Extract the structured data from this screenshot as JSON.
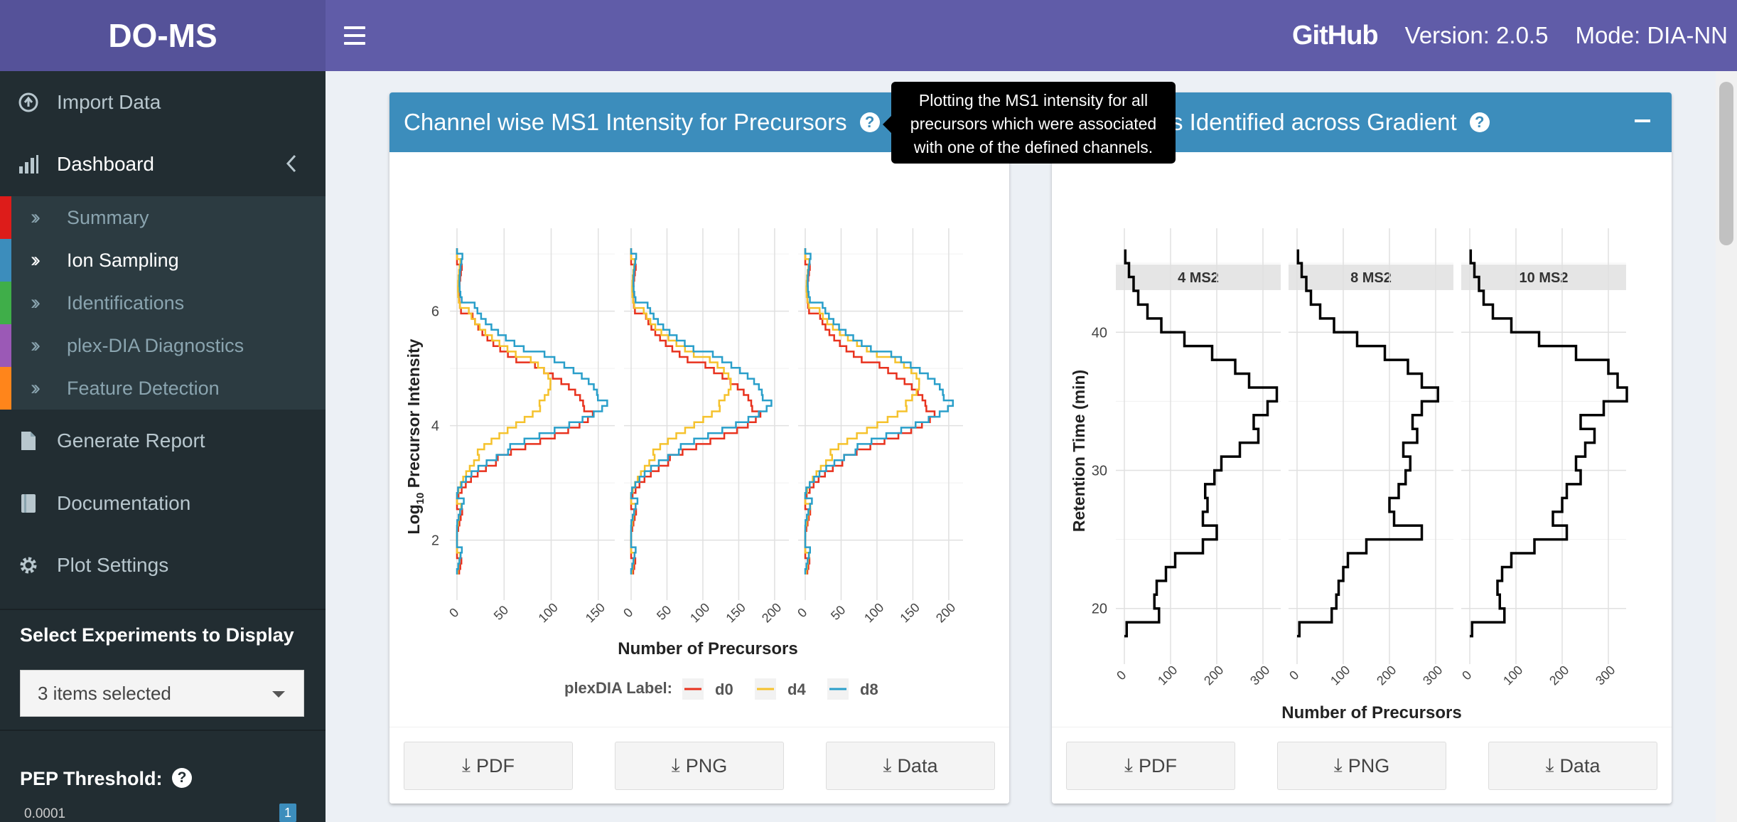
{
  "app": {
    "brand": "DO-MS",
    "github": "GitHub",
    "version": "Version: 2.0.5",
    "mode": "Mode: DIA-NN"
  },
  "sidebar": {
    "items": [
      {
        "label": "Import Data",
        "icon": "upload-icon"
      },
      {
        "label": "Dashboard",
        "icon": "bar-chart-icon"
      },
      {
        "label": "Generate Report",
        "icon": "file-icon"
      },
      {
        "label": "Documentation",
        "icon": "book-icon"
      },
      {
        "label": "Plot Settings",
        "icon": "gear-icon"
      }
    ],
    "subitems": [
      {
        "label": "Summary",
        "color": "#dd1c1a"
      },
      {
        "label": "Ion Sampling",
        "color": "#3c8dbc"
      },
      {
        "label": "Identifications",
        "color": "#3fae49"
      },
      {
        "label": "plex-DIA Diagnostics",
        "color": "#9b59b6"
      },
      {
        "label": "Feature Detection",
        "color": "#ff851b"
      }
    ],
    "select_experiments_label": "Select Experiments to Display",
    "select_value": "3 items selected",
    "pep_label": "PEP Threshold:",
    "pep_min": "0.0001",
    "pep_value": "1"
  },
  "box1": {
    "title": "Channel wise MS1 Intensity for Precursors",
    "tooltip": "Plotting the MS1 intensity for all precursors which were associated with one of the defined channels.",
    "buttons": [
      "PDF",
      "PNG",
      "Data"
    ]
  },
  "box2": {
    "title": "Precursors Identified across Gradient",
    "title_visible": "s Identified across Gradient",
    "buttons": [
      "PDF",
      "PNG",
      "Data"
    ]
  },
  "chart_data": [
    {
      "type": "line",
      "facets": [
        "4 MS2",
        "8 MS2",
        "10 MS2"
      ],
      "xlabel": "Number of Precursors",
      "ylabel": "Log10 Precursor Intensity",
      "ylabel_main": "Log",
      "ylabel_sub": "10",
      "ylabel_rest": " Precursor Intensity",
      "x_ticks": [
        [
          0,
          50,
          100,
          150
        ],
        [
          0,
          50,
          100,
          150,
          200
        ],
        [
          0,
          50,
          100,
          150,
          200
        ]
      ],
      "y_ticks": [
        2,
        4,
        6
      ],
      "xlim": [
        [
          0,
          160
        ],
        [
          0,
          210
        ],
        [
          0,
          210
        ]
      ],
      "ylim": [
        1.2,
        7.2
      ],
      "legend_title": "plexDIA Label:",
      "series": [
        {
          "name": "d0",
          "color": "#e8321e",
          "peak_y": 4.2,
          "peak_x": [
            140,
            175,
            175
          ],
          "sigma_lo": 0.55,
          "sigma_hi": 0.75
        },
        {
          "name": "d4",
          "color": "#f5c22d",
          "peak_y": 4.65,
          "peak_x": [
            100,
            140,
            160
          ],
          "sigma_lo": 0.7,
          "sigma_hi": 0.6
        },
        {
          "name": "d8",
          "color": "#2a9fca",
          "peak_y": 4.4,
          "peak_x": [
            155,
            190,
            200
          ],
          "sigma_lo": 0.6,
          "sigma_hi": 0.75
        }
      ]
    },
    {
      "type": "line",
      "facets": [
        "4 MS2",
        "8 MS2",
        "10 MS2"
      ],
      "xlabel": "Number of Precursors",
      "ylabel": "Retention Time (min)",
      "x_ticks": [
        0,
        100,
        200,
        300
      ],
      "y_ticks": [
        20,
        30,
        40
      ],
      "xlim": [
        0,
        320
      ],
      "ylim": [
        17,
        46.5
      ],
      "series_color": "#000000",
      "profile": [
        {
          "rt": 18,
          "n": [
            5,
            5,
            5
          ]
        },
        {
          "rt": 19,
          "n": [
            75,
            75,
            75
          ]
        },
        {
          "rt": 20,
          "n": [
            65,
            85,
            65
          ]
        },
        {
          "rt": 21,
          "n": [
            70,
            90,
            60
          ]
        },
        {
          "rt": 22,
          "n": [
            90,
            100,
            70
          ]
        },
        {
          "rt": 23,
          "n": [
            110,
            110,
            90
          ]
        },
        {
          "rt": 24,
          "n": [
            170,
            150,
            140
          ]
        },
        {
          "rt": 25,
          "n": [
            200,
            270,
            210
          ]
        },
        {
          "rt": 26,
          "n": [
            170,
            210,
            180
          ]
        },
        {
          "rt": 27,
          "n": [
            180,
            200,
            200
          ]
        },
        {
          "rt": 28,
          "n": [
            175,
            220,
            210
          ]
        },
        {
          "rt": 29,
          "n": [
            195,
            235,
            240
          ]
        },
        {
          "rt": 30,
          "n": [
            210,
            245,
            230
          ]
        },
        {
          "rt": 31,
          "n": [
            250,
            230,
            250
          ]
        },
        {
          "rt": 32,
          "n": [
            290,
            260,
            270
          ]
        },
        {
          "rt": 33,
          "n": [
            280,
            250,
            240
          ]
        },
        {
          "rt": 34,
          "n": [
            310,
            270,
            290
          ]
        },
        {
          "rt": 35,
          "n": [
            330,
            305,
            340
          ]
        },
        {
          "rt": 36,
          "n": [
            270,
            270,
            320
          ]
        },
        {
          "rt": 37,
          "n": [
            240,
            240,
            300
          ]
        },
        {
          "rt": 38,
          "n": [
            190,
            190,
            230
          ]
        },
        {
          "rt": 39,
          "n": [
            130,
            130,
            150
          ]
        },
        {
          "rt": 40,
          "n": [
            80,
            80,
            90
          ]
        },
        {
          "rt": 41,
          "n": [
            50,
            50,
            50
          ]
        },
        {
          "rt": 42,
          "n": [
            30,
            30,
            30
          ]
        },
        {
          "rt": 43,
          "n": [
            20,
            20,
            20
          ]
        },
        {
          "rt": 44,
          "n": [
            10,
            10,
            10
          ]
        },
        {
          "rt": 45,
          "n": [
            2,
            2,
            2
          ]
        }
      ]
    }
  ]
}
